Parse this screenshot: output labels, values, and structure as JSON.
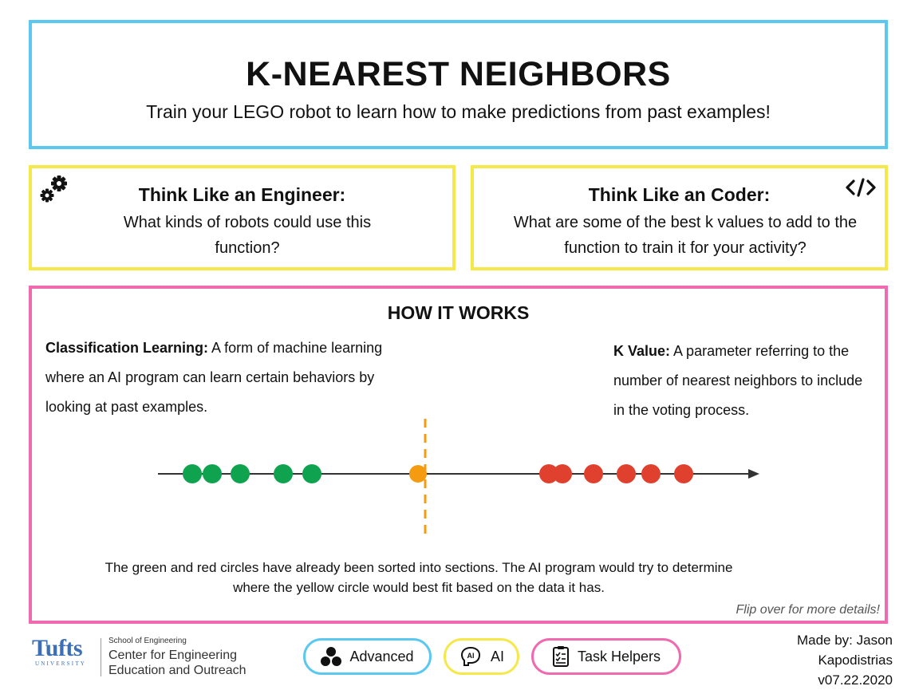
{
  "header": {
    "title": "K-NEAREST NEIGHBORS",
    "subtitle": "Train your LEGO robot to learn how to make predictions from past examples!"
  },
  "engineer": {
    "title": "Think Like an Engineer:",
    "body": "What kinds of robots could use this function?",
    "icon": "gears-icon"
  },
  "coder": {
    "title": "Think Like an Coder:",
    "body": "What are some of the best k values to add to the function to train it for your activity?",
    "icon": "code-icon"
  },
  "how": {
    "title": "HOW IT WORKS",
    "classification_term": "Classification Learning:",
    "classification_text": " A form of machine learning where an AI program can learn certain behaviors by looking at past examples.",
    "kvalue_term": "K Value:",
    "kvalue_text": " A parameter referring to the number of nearest neighbors to include in the voting process.",
    "caption_line1": "The green and red circles have already been sorted into sections. The AI program would try to determine",
    "caption_line2": "where the yellow circle would best fit  based on the data it has.",
    "flip_note": "Flip over for more details!"
  },
  "diagram": {
    "colors": {
      "green": "#10a34f",
      "red": "#e0412f",
      "orange": "#f59b12",
      "axis": "#333333"
    }
  },
  "footer": {
    "logo_word": "Tufts",
    "logo_university": "UNIVERSITY",
    "logo_school": "School of Engineering",
    "logo_center_line1": "Center for Engineering",
    "logo_center_line2": "Education and Outreach",
    "pills": {
      "advanced": "Advanced",
      "ai": "AI",
      "ai_icon_text": "AI",
      "tasks": "Task Helpers"
    },
    "credits_line1": "Made by: Jason",
    "credits_line2": "Kapodistrias",
    "credits_line3": "v07.22.2020"
  },
  "colors": {
    "title_border": "#5bc8ef",
    "think_border": "#f4e84a",
    "how_border": "#f06ab0"
  }
}
